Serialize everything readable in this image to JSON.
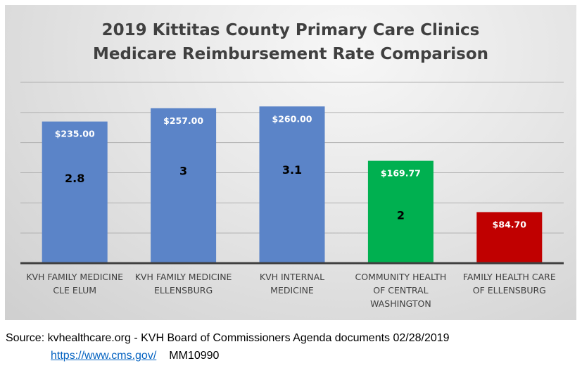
{
  "chart_data": {
    "type": "bar",
    "title_lines": [
      "2019 Kittitas County Primary Care Clinics",
      "Medicare Reimbursement Rate Comparison"
    ],
    "categories": [
      [
        "KVH FAMILY MEDICINE",
        "CLE ELUM"
      ],
      [
        "KVH FAMILY MEDICINE",
        "ELLENSBURG"
      ],
      [
        "KVH INTERNAL",
        "MEDICINE"
      ],
      [
        "COMMUNITY HEALTH",
        "OF CENTRAL",
        "WASHINGTON"
      ],
      [
        "FAMILY HEALTH CARE",
        "OF ELLENSBURG"
      ]
    ],
    "values": [
      235.0,
      257.0,
      260.0,
      169.77,
      84.7
    ],
    "value_labels": [
      "$235.00",
      "$257.00",
      "$260.00",
      "$169.77",
      "$84.70"
    ],
    "ratio_labels": [
      "2.8",
      "3",
      "3.1",
      "2",
      ""
    ],
    "bar_colors": [
      "#5b84c8",
      "#5b84c8",
      "#5b84c8",
      "#00b050",
      "#c00000"
    ],
    "xlabel": "",
    "ylabel": "",
    "ylim": [
      0,
      300
    ],
    "ytick_step": 50,
    "y_tick_labels_shown": false,
    "grid": true,
    "legend": "none"
  },
  "footer": {
    "source_text": "Source: kvhealthcare.org - KVH Board of Commissioners Agenda documents 02/28/2019",
    "link_text": "https://www.cms.gov/",
    "code_text": "MM10990"
  }
}
